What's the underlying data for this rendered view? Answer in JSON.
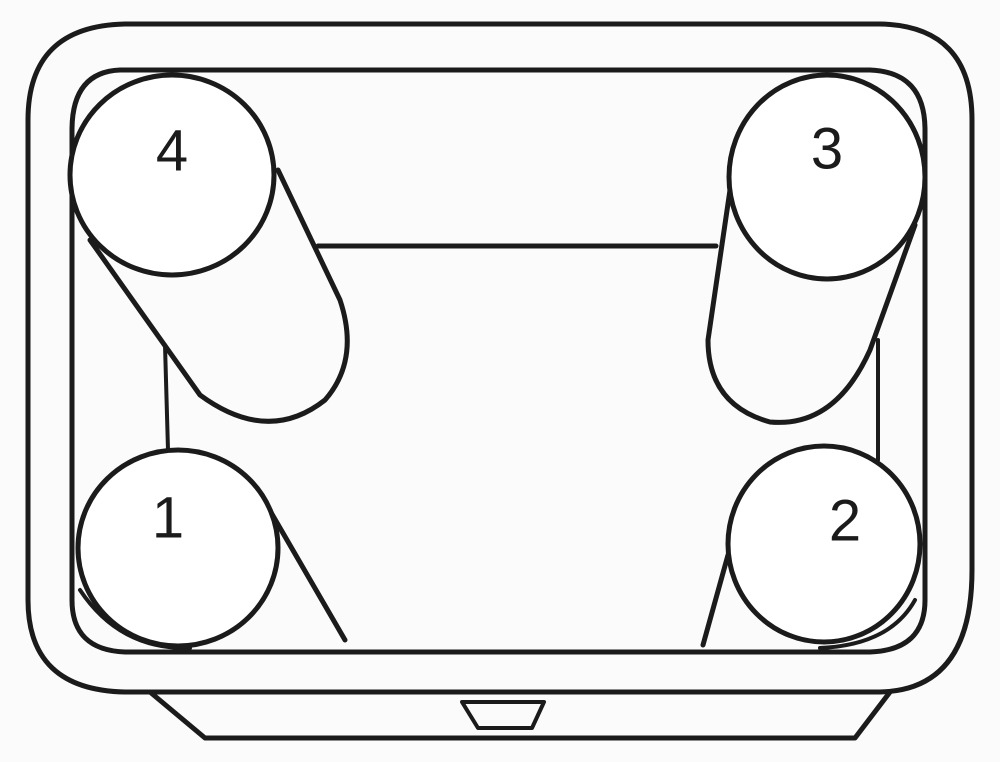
{
  "diagram": {
    "cells": [
      {
        "label": "1"
      },
      {
        "label": "2"
      },
      {
        "label": "3"
      },
      {
        "label": "4"
      }
    ]
  }
}
